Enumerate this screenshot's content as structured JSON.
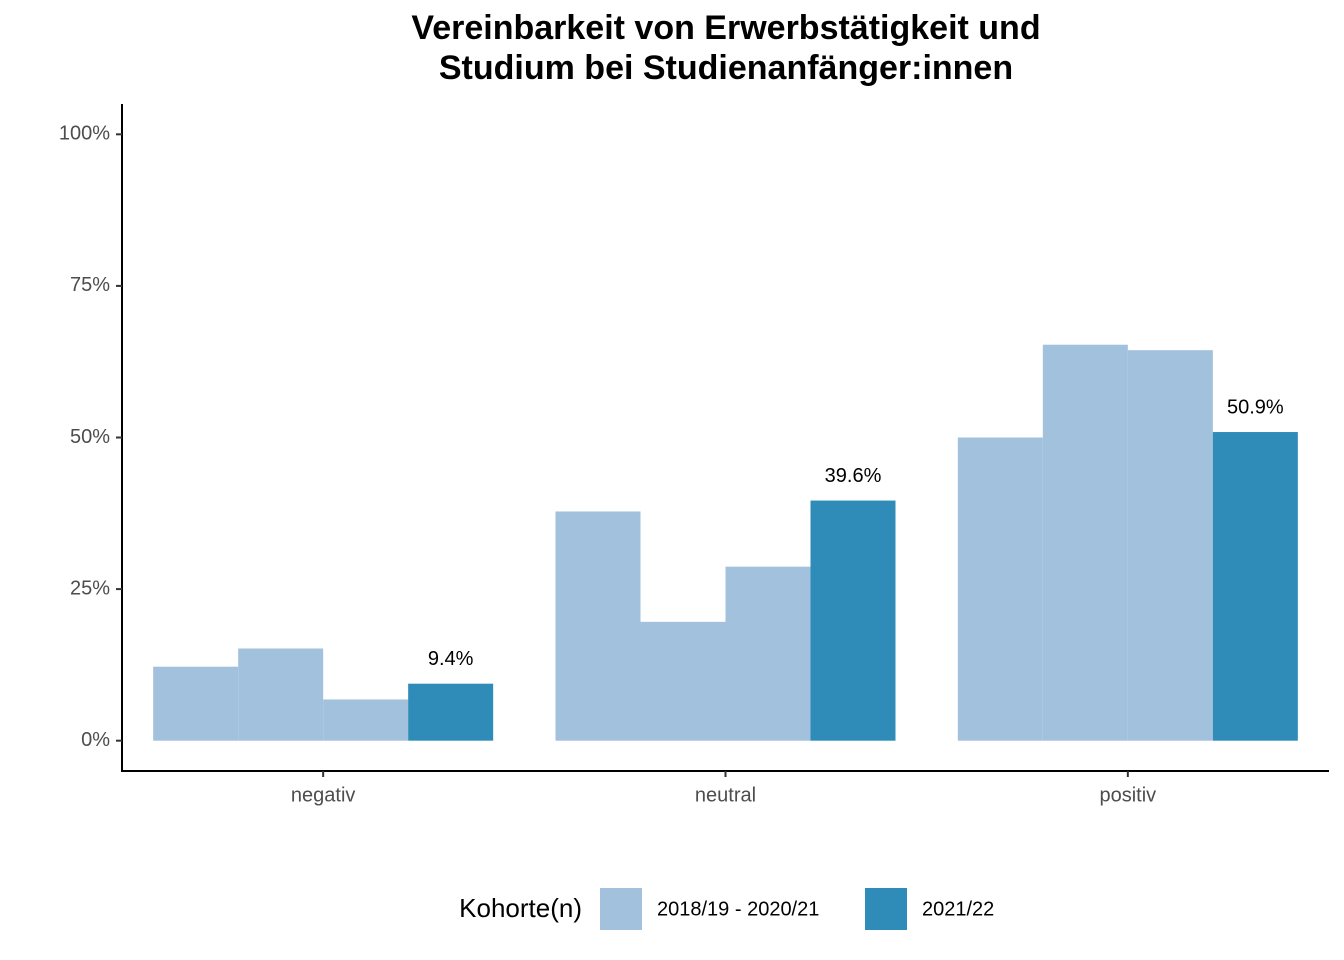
{
  "chart_data": {
    "type": "bar",
    "title": "Vereinbarkeit von Erwerbstätigkeit und",
    "subtitle": "Studium bei Studienanfänger:innen",
    "categories": [
      "negativ",
      "neutral",
      "positiv"
    ],
    "series": [
      {
        "name": "2018/19 - 2020/21",
        "color": "#a1c1dd",
        "values": [
          [
            12.2,
            15.2,
            6.8
          ],
          [
            37.8,
            19.6,
            28.7
          ],
          [
            50.0,
            65.3,
            64.4
          ]
        ]
      },
      {
        "name": "2021/22",
        "color": "#2f8bb7",
        "values": [
          9.4,
          39.6,
          50.9
        ],
        "value_labels": [
          "9.4%",
          "39.6%",
          "50.9%"
        ]
      }
    ],
    "ylim": [
      -5,
      105
    ],
    "yticks": [
      {
        "value": 0,
        "label": "0%"
      },
      {
        "value": 25,
        "label": "25%"
      },
      {
        "value": 50,
        "label": "50%"
      },
      {
        "value": 75,
        "label": "75%"
      },
      {
        "value": 100,
        "label": "100%"
      }
    ],
    "legend_title": "Kohorte(n)",
    "legend_position": "bottom",
    "grid": false
  }
}
